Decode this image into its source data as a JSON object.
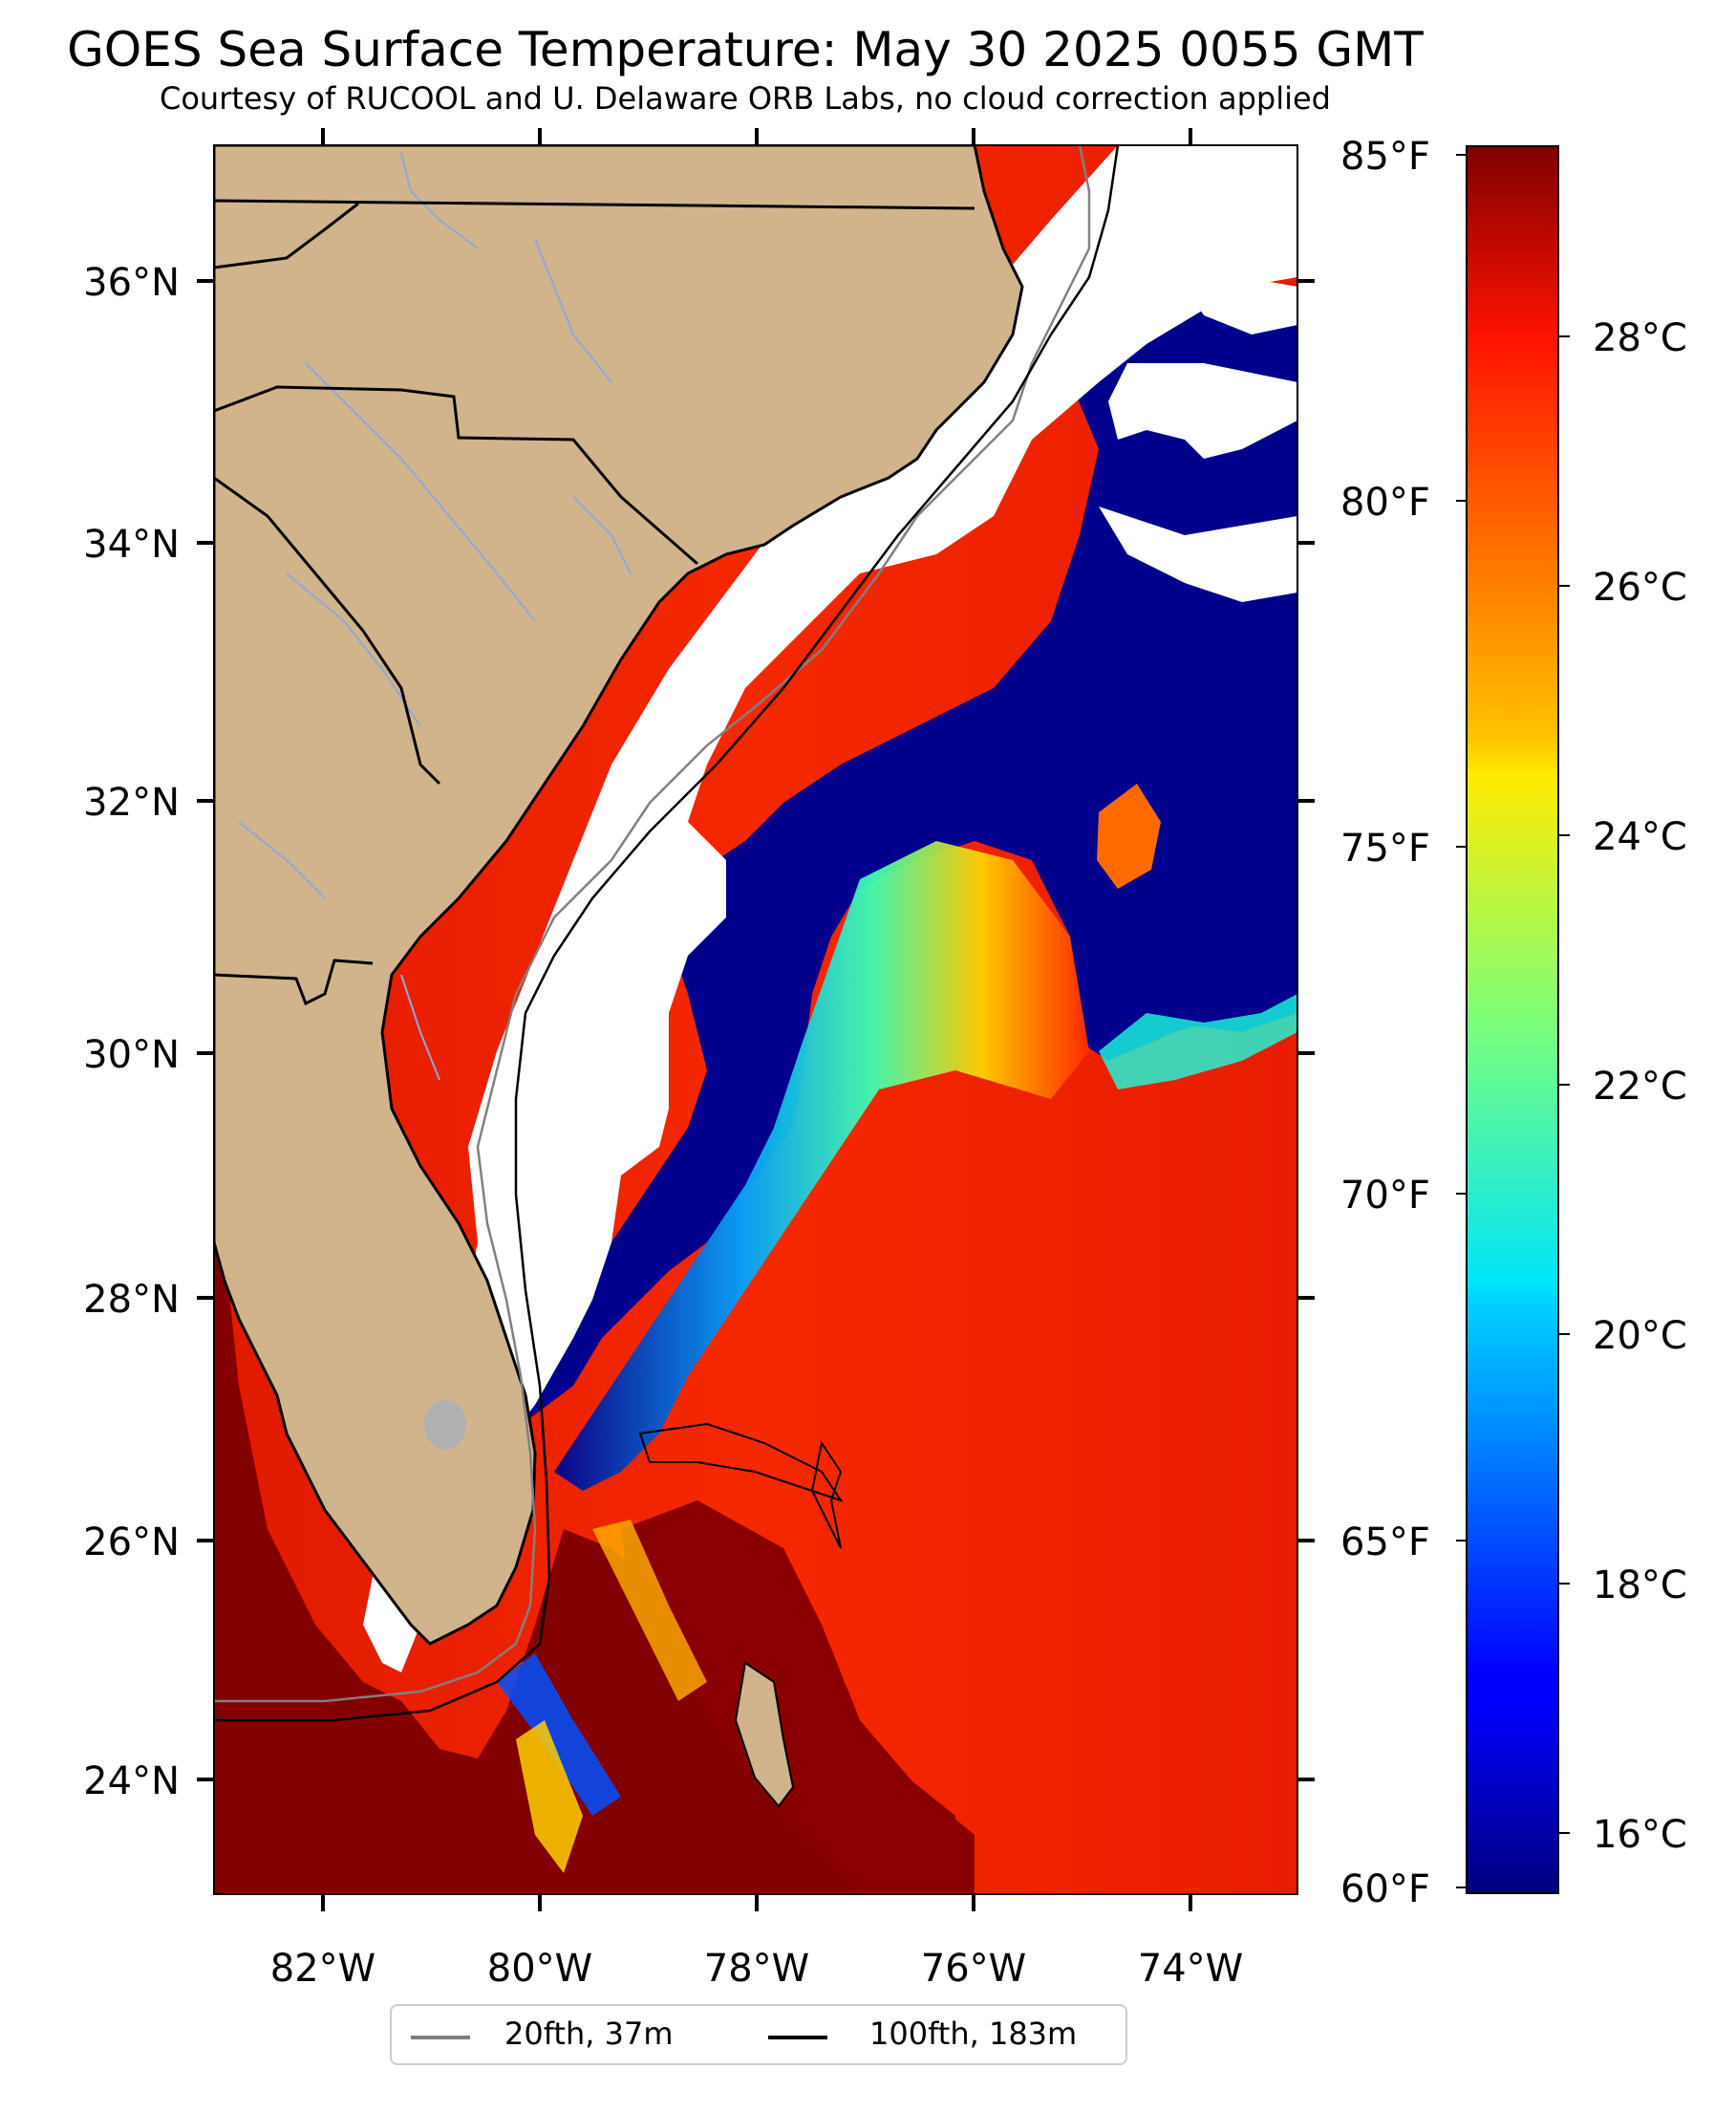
{
  "title": "GOES Sea Surface Temperature: May 30 2025 0055 GMT",
  "subtitle": "Courtesy of RUCOOL and U. Delaware ORB Labs, no cloud correction applied",
  "map": {
    "lat_labels": [
      "36°N",
      "34°N",
      "32°N",
      "30°N",
      "28°N",
      "26°N",
      "24°N"
    ],
    "lon_labels": [
      "82°W",
      "80°W",
      "78°W",
      "76°W",
      "74°W"
    ],
    "lat_range": [
      23.1,
      37.1
    ],
    "lon_range": [
      -83.0,
      -73.0
    ],
    "land_color": "#d2b48c",
    "no_data_color": "#ffffff"
  },
  "colorbar": {
    "fahrenheit_labels": [
      "85°F",
      "80°F",
      "75°F",
      "70°F",
      "65°F",
      "60°F"
    ],
    "celsius_labels": [
      "28°C",
      "26°C",
      "24°C",
      "22°C",
      "20°C",
      "18°C",
      "16°C"
    ],
    "range_f": [
      60,
      85
    ],
    "colormap": "jet"
  },
  "legend": {
    "items": [
      {
        "label": "20fth, 37m",
        "color": "#808080"
      },
      {
        "label": "100fth, 183m",
        "color": "#000000"
      }
    ]
  }
}
